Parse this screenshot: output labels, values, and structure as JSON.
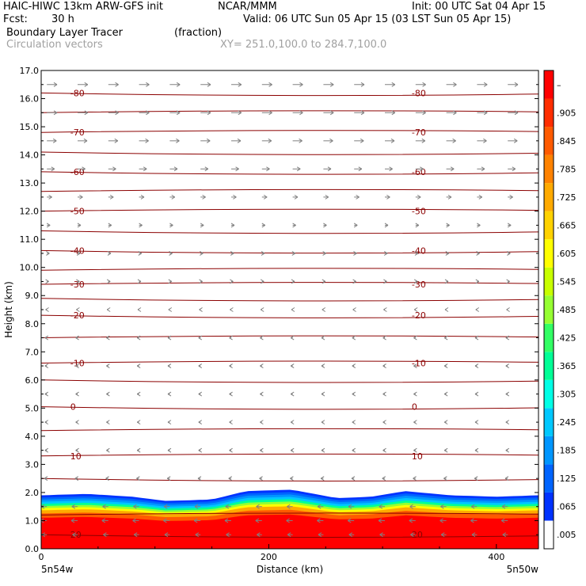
{
  "header": {
    "model": "HAIC-HIWC 13km ARW-GFS init",
    "org": "NCAR/MMM",
    "init": "Init: 00 UTC Sat 04 Apr 15",
    "fcst_label": "Fcst:",
    "fcst_value": "30 h",
    "valid": "Valid: 06 UTC Sun 05 Apr 15 (03 LST Sun 05 Apr 15)",
    "field": "Boundary Layer Tracer",
    "field_units": "(fraction)",
    "vectors": "Circulation vectors",
    "xy": "XY= 251.0,100.0 to 284.7,100.0"
  },
  "chart_data": {
    "type": "heatmap",
    "title": "Boundary Layer Tracer",
    "units": "(fraction)",
    "xlabel": "Distance (km)",
    "ylabel": "Height (km)",
    "xlim": [
      0,
      437
    ],
    "ylim": [
      0,
      17
    ],
    "x_ticks": [
      0,
      200,
      400
    ],
    "x_tick_labels": [
      "0",
      "200",
      "400"
    ],
    "x_end_labels": [
      "5n54w",
      "5n50w"
    ],
    "y_ticks": [
      0,
      1,
      2,
      3,
      4,
      5,
      6,
      7,
      8,
      9,
      10,
      11,
      12,
      13,
      14,
      15,
      16,
      17
    ],
    "y_tick_labels": [
      "0.0",
      "1.0",
      "2.0",
      "3.0",
      "4.0",
      "5.0",
      "6.0",
      "7.0",
      "8.0",
      "9.0",
      "10.0",
      "11.0",
      "12.0",
      "13.0",
      "14.0",
      "15.0",
      "16.0",
      "17.0"
    ],
    "colorbar": {
      "labels": [
        ".005",
        ".065",
        ".125",
        ".185",
        ".245",
        ".305",
        ".365",
        ".425",
        ".485",
        ".545",
        ".605",
        ".665",
        ".725",
        ".785",
        ".845",
        ".905",
        "–"
      ],
      "colors": [
        "#ffffff",
        "#0032ff",
        "#0064ff",
        "#0096ff",
        "#00c8ff",
        "#00ffe6",
        "#00ff96",
        "#32ff64",
        "#96ff32",
        "#c8ff00",
        "#ffff00",
        "#ffd200",
        "#ffaa00",
        "#ff8200",
        "#ff5a00",
        "#ff2d00",
        "#ff0000"
      ]
    },
    "boundary_layer_top_km": {
      "x": [
        0,
        40,
        80,
        110,
        150,
        180,
        220,
        260,
        290,
        320,
        360,
        400,
        437
      ],
      "y": [
        1.9,
        1.95,
        1.85,
        1.7,
        1.75,
        2.05,
        2.1,
        1.8,
        1.85,
        2.05,
        1.9,
        1.85,
        1.9
      ]
    },
    "isotherms": [
      {
        "label": "-80",
        "height_km": 16.2
      },
      {
        "label": "-70",
        "height_km": 14.8
      },
      {
        "label": "-60",
        "height_km": 13.4
      },
      {
        "label": "-50",
        "height_km": 12.0
      },
      {
        "label": "-40",
        "height_km": 10.6
      },
      {
        "label": "-30",
        "height_km": 9.4
      },
      {
        "label": "-20",
        "height_km": 8.3
      },
      {
        "label": "-10",
        "height_km": 6.6
      },
      {
        "label": "0",
        "height_km": 5.05
      },
      {
        "label": "10",
        "height_km": 3.3
      },
      {
        "label": "20",
        "height_km": 0.5
      }
    ],
    "isotherm_extra_heights_km": [
      15.5,
      14.1,
      12.7,
      11.3,
      9.9,
      8.9,
      7.5,
      6.0,
      4.2,
      2.5,
      1.2
    ],
    "wind_direction_by_height_km": {
      "heights": [
        0.5,
        1.0,
        1.5,
        2.5,
        3.5,
        4.5,
        5.5,
        6.5,
        7.5,
        8.5,
        9.5,
        10.5,
        11.5,
        12.5,
        13.5,
        14.5,
        15.5,
        16.5
      ],
      "u_rel": [
        -0.8,
        -1.0,
        -0.9,
        -0.4,
        -0.3,
        -0.3,
        -0.3,
        -0.3,
        -0.3,
        -0.2,
        0.3,
        0.4,
        0.5,
        0.8,
        1.2,
        1.5,
        1.6,
        1.6
      ]
    },
    "colors": {
      "isotherm": "#8b0000",
      "vector": "#808080"
    }
  }
}
